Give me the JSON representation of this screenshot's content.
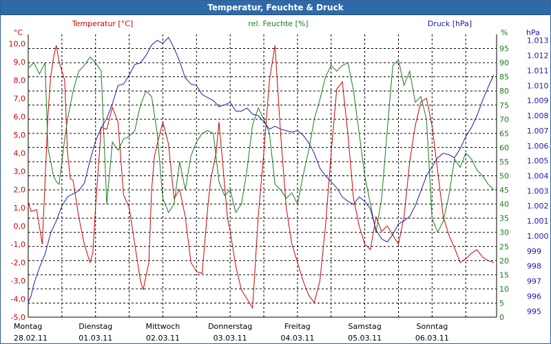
{
  "window": {
    "title": "Temperatur, Feuchte & Druck"
  },
  "chart_data": {
    "type": "line",
    "title": "Temperatur, Feuchte & Druck",
    "grid": true,
    "colors": {
      "temp": "#cc0000",
      "hum": "#1a7a1a",
      "press": "#1a1aaa",
      "grid": "#000000",
      "text": "#000000"
    },
    "axes": {
      "temp": {
        "label": "Temperatur [°C]",
        "unit": "°C",
        "range": [
          -5,
          10.5
        ],
        "ticks": [
          "-5,0",
          "-4,0",
          "-3,0",
          "-2,0",
          "-1,0",
          "0,0",
          "1,0",
          "2,0",
          "3,0",
          "4,0",
          "5,0",
          "6,0",
          "7,0",
          "8,0",
          "9,0",
          "10,0"
        ]
      },
      "hum": {
        "label": "rel. Feuchte [%]",
        "unit": "%",
        "range": [
          0,
          100
        ],
        "ticks": [
          "0",
          "5",
          "10",
          "15",
          "20",
          "25",
          "30",
          "35",
          "40",
          "45",
          "50",
          "55",
          "60",
          "65",
          "70",
          "75",
          "80",
          "85",
          "90",
          "95"
        ]
      },
      "press": {
        "label": "Druck [hPa]",
        "unit": "hPa",
        "range": [
          994.6,
          1013.4
        ],
        "ticks": [
          "995",
          "996",
          "997",
          "998",
          "999",
          "1.000",
          "1.001",
          "1.002",
          "1.003",
          "1.004",
          "1.005",
          "1.006",
          "1.007",
          "1.008",
          "1.009",
          "1.010",
          "1.011",
          "1.012",
          "1.013"
        ]
      }
    },
    "days": [
      {
        "name": "Montag",
        "date": "28.02.11"
      },
      {
        "name": "Dienstag",
        "date": "01.03.11"
      },
      {
        "name": "Mittwoch",
        "date": "02.03.11"
      },
      {
        "name": "Donnerstag",
        "date": "03.03.11"
      },
      {
        "name": "Freitag",
        "date": "04.03.11"
      },
      {
        "name": "Samstag",
        "date": "05.03.11"
      },
      {
        "name": "Sonntag",
        "date": "06.03.11"
      }
    ],
    "x_unit": "hours since 28.02.11 00:00",
    "x_range": [
      0,
      167
    ],
    "series": [
      {
        "name": "Temperatur [°C]",
        "axis": "temp",
        "color": "#cc0000",
        "x": [
          0,
          1,
          3,
          5,
          7,
          8,
          9,
          10,
          11,
          13,
          14,
          15,
          16,
          18,
          20,
          22,
          23,
          24,
          26,
          28,
          30,
          32,
          34,
          36,
          38,
          40,
          41,
          43,
          44,
          45,
          46,
          48,
          50,
          52,
          54,
          56,
          58,
          60,
          62,
          64,
          65,
          67,
          68,
          69,
          71,
          72,
          74,
          76,
          78,
          80,
          82,
          84,
          86,
          88,
          90,
          92,
          94,
          96,
          98,
          100,
          102,
          104,
          106,
          108,
          110,
          112,
          114,
          116,
          118,
          120,
          122,
          124,
          126,
          128,
          130,
          132,
          134,
          136,
          138,
          140,
          142,
          144,
          146,
          148,
          150,
          152,
          154,
          156,
          158,
          160,
          162,
          164,
          166
        ],
        "y": [
          1.3,
          0.8,
          0.9,
          -1.0,
          6.0,
          8.2,
          9.2,
          9.9,
          9.0,
          8.0,
          4.0,
          2.6,
          2.5,
          0.5,
          -1.0,
          -2.0,
          -1.5,
          1.0,
          5.4,
          5.3,
          6.5,
          5.7,
          1.7,
          1.0,
          -1.0,
          -3.0,
          -3.5,
          -2.0,
          2.0,
          3.8,
          4.5,
          5.7,
          4.5,
          1.5,
          2.0,
          0.5,
          -2.0,
          -2.5,
          -2.6,
          1.0,
          2.5,
          4.0,
          5.7,
          4.0,
          0.5,
          -0.3,
          -2.2,
          -3.5,
          -4.0,
          -4.5,
          0.5,
          4.0,
          8.0,
          9.9,
          5.0,
          1.0,
          -1.0,
          -2.0,
          -3.0,
          -3.8,
          -4.2,
          -3.0,
          0.0,
          4.0,
          7.5,
          7.9,
          5.0,
          1.5,
          0.0,
          -1.0,
          -1.3,
          0.5,
          -0.3,
          0.0,
          -0.5,
          -1.0,
          0.5,
          3.5,
          5.5,
          6.8,
          7.0,
          5.5,
          3.0,
          0.5,
          -0.5,
          -1.2,
          -2.0,
          -1.8,
          -1.5,
          -1.3,
          -1.7,
          -1.9,
          -2.0
        ]
      },
      {
        "name": "rel. Feuchte [%]",
        "axis": "hum",
        "color": "#1a7a1a",
        "x": [
          0,
          2,
          4,
          5,
          6,
          7,
          8,
          9,
          10,
          11,
          12,
          13,
          14,
          15,
          16,
          18,
          20,
          22,
          24,
          26,
          28,
          30,
          32,
          34,
          36,
          38,
          40,
          42,
          44,
          46,
          48,
          50,
          52,
          54,
          56,
          58,
          60,
          62,
          64,
          66,
          68,
          70,
          72,
          74,
          76,
          78,
          80,
          82,
          84,
          86,
          88,
          90,
          92,
          94,
          96,
          98,
          100,
          102,
          104,
          106,
          108,
          110,
          112,
          114,
          116,
          118,
          120,
          122,
          124,
          126,
          128,
          130,
          132,
          134,
          136,
          138,
          140,
          142,
          144,
          146,
          148,
          150,
          152,
          154,
          156,
          158,
          160,
          162,
          164,
          166
        ],
        "y": [
          88,
          90,
          86,
          88,
          90,
          60,
          55,
          50,
          48,
          47,
          55,
          63,
          70,
          75,
          80,
          87,
          89,
          92,
          90,
          87,
          40,
          62,
          59,
          63,
          64,
          66,
          75,
          80,
          78,
          65,
          42,
          37,
          40,
          55,
          45,
          57,
          62,
          65,
          66,
          65,
          48,
          43,
          45,
          37,
          40,
          52,
          68,
          74,
          70,
          65,
          47,
          45,
          42,
          44,
          40,
          50,
          59,
          70,
          77,
          85,
          89,
          87,
          89,
          90,
          80,
          65,
          50,
          40,
          30,
          42,
          66,
          89,
          91,
          82,
          87,
          76,
          78,
          70,
          35,
          30,
          34,
          43,
          56,
          53,
          58,
          56,
          52,
          50,
          47,
          45
        ]
      },
      {
        "name": "Druck [hPa]",
        "axis": "press",
        "color": "#1a1aaa",
        "x": [
          0,
          1,
          2,
          4,
          6,
          8,
          10,
          12,
          14,
          16,
          18,
          20,
          22,
          24,
          26,
          28,
          30,
          32,
          34,
          36,
          38,
          40,
          42,
          44,
          46,
          48,
          50,
          52,
          54,
          56,
          58,
          60,
          62,
          64,
          66,
          68,
          70,
          72,
          74,
          76,
          78,
          80,
          82,
          84,
          86,
          88,
          90,
          92,
          94,
          96,
          98,
          100,
          102,
          104,
          106,
          108,
          110,
          112,
          114,
          116,
          118,
          120,
          122,
          124,
          126,
          128,
          130,
          132,
          134,
          136,
          138,
          140,
          142,
          144,
          146,
          148,
          150,
          152,
          154,
          156,
          158,
          160,
          162,
          164,
          166
        ],
        "y": [
          995.6,
          996.0,
          996.8,
          997.9,
          998.8,
          1000.2,
          1001.0,
          1002.0,
          1002.6,
          1002.8,
          1003.0,
          1003.5,
          1005.0,
          1006.3,
          1007.2,
          1007.8,
          1008.8,
          1010.0,
          1010.1,
          1010.7,
          1011.4,
          1011.5,
          1012.0,
          1012.7,
          1013.0,
          1012.8,
          1013.2,
          1012.5,
          1011.6,
          1010.5,
          1010.1,
          1010.0,
          1009.4,
          1009.2,
          1009.0,
          1008.6,
          1008.7,
          1008.9,
          1008.3,
          1008.3,
          1008.5,
          1008.1,
          1008.0,
          1007.6,
          1007.1,
          1007.3,
          1007.1,
          1007.0,
          1006.9,
          1007.0,
          1006.7,
          1006.2,
          1005.5,
          1004.5,
          1004.0,
          1003.6,
          1003.2,
          1002.6,
          1002.3,
          1002.1,
          1002.6,
          1002.3,
          1001.8,
          1000.4,
          999.8,
          999.6,
          1000.1,
          1000.8,
          1001.0,
          1001.3,
          1002.0,
          1003.0,
          1004.0,
          1004.6,
          1005.2,
          1005.5,
          1005.4,
          1005.2,
          1005.8,
          1006.6,
          1007.2,
          1008.0,
          1009.0,
          1009.9,
          1010.7
        ]
      }
    ]
  }
}
